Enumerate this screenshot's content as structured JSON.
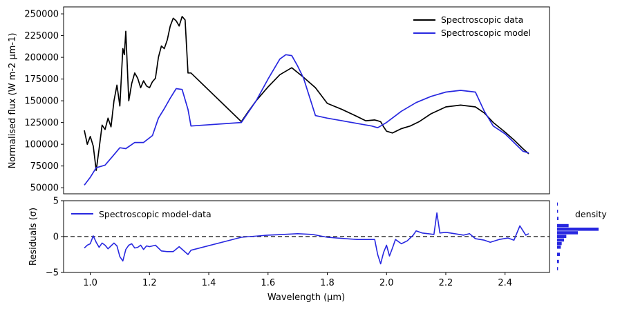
{
  "chart_data": [
    {
      "type": "line",
      "ylabel": "Normalised flux (W m-2 μm-1)",
      "xlim": [
        0.91,
        2.55
      ],
      "ylim": [
        43000,
        258000
      ],
      "yticks": [
        50000,
        75000,
        100000,
        125000,
        150000,
        175000,
        200000,
        225000,
        250000
      ],
      "ytick_labels": [
        "50000",
        "75000",
        "100000",
        "125000",
        "150000",
        "175000",
        "200000",
        "225000",
        "250000"
      ],
      "legend_position": "top-right",
      "series": [
        {
          "name": "Spectroscopic data",
          "color": "#000000",
          "x": [
            0.98,
            0.99,
            1.0,
            1.01,
            1.02,
            1.03,
            1.04,
            1.05,
            1.06,
            1.07,
            1.08,
            1.09,
            1.1,
            1.11,
            1.115,
            1.12,
            1.13,
            1.14,
            1.15,
            1.16,
            1.17,
            1.18,
            1.19,
            1.2,
            1.21,
            1.22,
            1.23,
            1.24,
            1.25,
            1.26,
            1.27,
            1.28,
            1.29,
            1.3,
            1.31,
            1.32,
            1.33,
            1.34,
            1.51,
            1.53,
            1.56,
            1.6,
            1.64,
            1.68,
            1.72,
            1.76,
            1.8,
            1.85,
            1.9,
            1.93,
            1.96,
            1.97,
            1.98,
            1.99,
            2.0,
            2.02,
            2.05,
            2.08,
            2.11,
            2.15,
            2.2,
            2.25,
            2.3,
            2.33,
            2.36,
            2.4,
            2.43,
            2.46,
            2.48
          ],
          "y": [
            116000,
            100000,
            109000,
            98000,
            70000,
            95000,
            122000,
            117000,
            130000,
            120000,
            150000,
            168000,
            144000,
            210000,
            203000,
            230000,
            150000,
            170000,
            182000,
            176000,
            165000,
            173000,
            167000,
            165000,
            172000,
            176000,
            200000,
            213000,
            210000,
            220000,
            236000,
            245000,
            242000,
            236000,
            247000,
            243000,
            182000,
            182000,
            126000,
            136000,
            150000,
            166000,
            180000,
            188000,
            177000,
            165000,
            147000,
            140000,
            132000,
            127000,
            128000,
            127000,
            126000,
            120000,
            115000,
            113000,
            118000,
            121000,
            126000,
            135000,
            143000,
            145000,
            143000,
            136000,
            125000,
            114000,
            105000,
            95000,
            89000
          ]
        },
        {
          "name": "Spectroscopic model",
          "color": "#2727e0",
          "x": [
            0.98,
            1.0,
            1.02,
            1.05,
            1.08,
            1.1,
            1.12,
            1.15,
            1.18,
            1.21,
            1.23,
            1.25,
            1.27,
            1.29,
            1.31,
            1.33,
            1.34,
            1.51,
            1.56,
            1.6,
            1.64,
            1.66,
            1.68,
            1.7,
            1.72,
            1.76,
            1.8,
            1.85,
            1.9,
            1.95,
            1.97,
            2.0,
            2.05,
            2.1,
            2.15,
            2.2,
            2.25,
            2.3,
            2.33,
            2.36,
            2.4,
            2.43,
            2.46,
            2.48
          ],
          "y": [
            53000,
            62000,
            73000,
            76000,
            88000,
            96000,
            95000,
            102000,
            102000,
            110000,
            130000,
            141000,
            153000,
            164000,
            163000,
            140000,
            121000,
            125000,
            150000,
            175000,
            198000,
            203000,
            202000,
            190000,
            176000,
            133000,
            130000,
            127000,
            124000,
            121000,
            119000,
            125000,
            138000,
            148000,
            155000,
            160000,
            162000,
            160000,
            138000,
            121000,
            112000,
            102000,
            92000,
            90000
          ]
        }
      ]
    },
    {
      "type": "line",
      "xlabel": "Wavelength (μm)",
      "ylabel": "Residuals (σ)",
      "xlim": [
        0.91,
        2.55
      ],
      "ylim": [
        -5,
        5
      ],
      "yticks": [
        -5,
        0,
        5
      ],
      "ytick_labels": [
        "−5",
        "0",
        "5"
      ],
      "xticks": [
        1.0,
        1.2,
        1.4,
        1.6,
        1.8,
        2.0,
        2.2,
        2.4
      ],
      "xtick_labels": [
        "1.0",
        "1.2",
        "1.4",
        "1.6",
        "1.8",
        "2.0",
        "2.2",
        "2.4"
      ],
      "reference_line": 0,
      "legend_position": "top-left",
      "series": [
        {
          "name": "Spectroscopic model-data",
          "color": "#2727e0",
          "x": [
            0.98,
            0.99,
            1.0,
            1.01,
            1.02,
            1.03,
            1.04,
            1.05,
            1.06,
            1.07,
            1.08,
            1.09,
            1.1,
            1.11,
            1.12,
            1.13,
            1.14,
            1.15,
            1.16,
            1.17,
            1.18,
            1.19,
            1.2,
            1.22,
            1.24,
            1.26,
            1.28,
            1.3,
            1.33,
            1.34,
            1.51,
            1.6,
            1.65,
            1.7,
            1.75,
            1.8,
            1.9,
            1.96,
            1.97,
            1.98,
            1.99,
            2.0,
            2.01,
            2.02,
            2.03,
            2.05,
            2.07,
            2.09,
            2.1,
            2.12,
            2.14,
            2.16,
            2.17,
            2.18,
            2.2,
            2.23,
            2.26,
            2.28,
            2.3,
            2.33,
            2.35,
            2.38,
            2.41,
            2.43,
            2.45,
            2.47,
            2.48
          ],
          "y": [
            -1.6,
            -1.2,
            -1.0,
            0.1,
            -0.8,
            -1.5,
            -0.9,
            -1.2,
            -1.7,
            -1.3,
            -0.9,
            -1.3,
            -2.8,
            -3.4,
            -1.8,
            -1.2,
            -1.0,
            -1.6,
            -1.5,
            -1.2,
            -1.8,
            -1.3,
            -1.4,
            -1.2,
            -2.0,
            -2.1,
            -2.1,
            -1.4,
            -2.5,
            -1.9,
            -0.1,
            0.2,
            0.3,
            0.4,
            0.3,
            -0.1,
            -0.4,
            -0.4,
            -2.5,
            -3.8,
            -2.2,
            -1.2,
            -2.7,
            -1.6,
            -0.4,
            -1.0,
            -0.6,
            0.2,
            0.8,
            0.5,
            0.4,
            0.3,
            3.3,
            0.5,
            0.6,
            0.4,
            0.2,
            0.4,
            -0.3,
            -0.5,
            -0.8,
            -0.4,
            -0.2,
            -0.5,
            1.5,
            0.2,
            0.4
          ]
        }
      ]
    },
    {
      "type": "bar",
      "orientation": "horizontal",
      "legend_label": "density",
      "ylim": [
        -5,
        5
      ],
      "bins": [
        -4.5,
        -3.5,
        -2.5,
        -1.5,
        -1.0,
        -0.5,
        0.0,
        0.5,
        1.0,
        1.5,
        2.5,
        3.5,
        4.5
      ],
      "values": [
        0.02,
        0.04,
        0.06,
        0.08,
        0.1,
        0.15,
        0.2,
        0.45,
        0.9,
        0.25,
        0.03,
        0.02,
        0.01
      ],
      "color": "#2727e0"
    }
  ]
}
